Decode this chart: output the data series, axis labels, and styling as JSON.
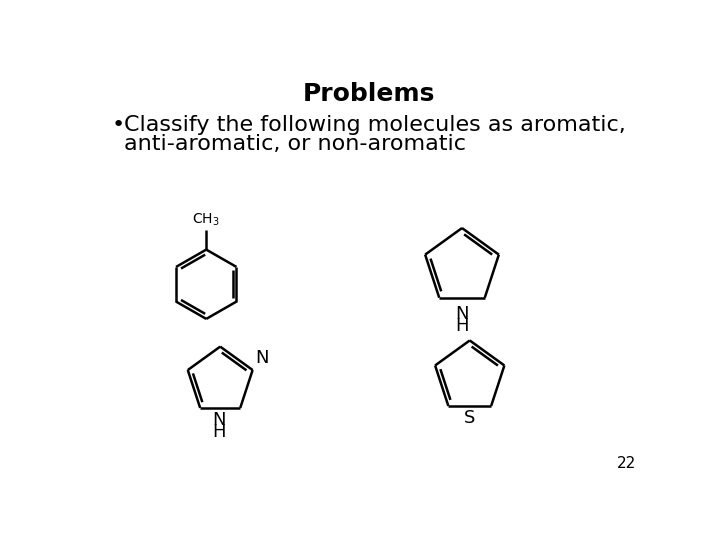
{
  "title": "Problems",
  "bullet_line1": "Classify the following molecules as aromatic,",
  "bullet_line2": "anti-aromatic, or non-aromatic",
  "page_number": "22",
  "bg_color": "#ffffff",
  "text_color": "#000000",
  "title_fontsize": 18,
  "bullet_fontsize": 16,
  "line_width": 1.8
}
